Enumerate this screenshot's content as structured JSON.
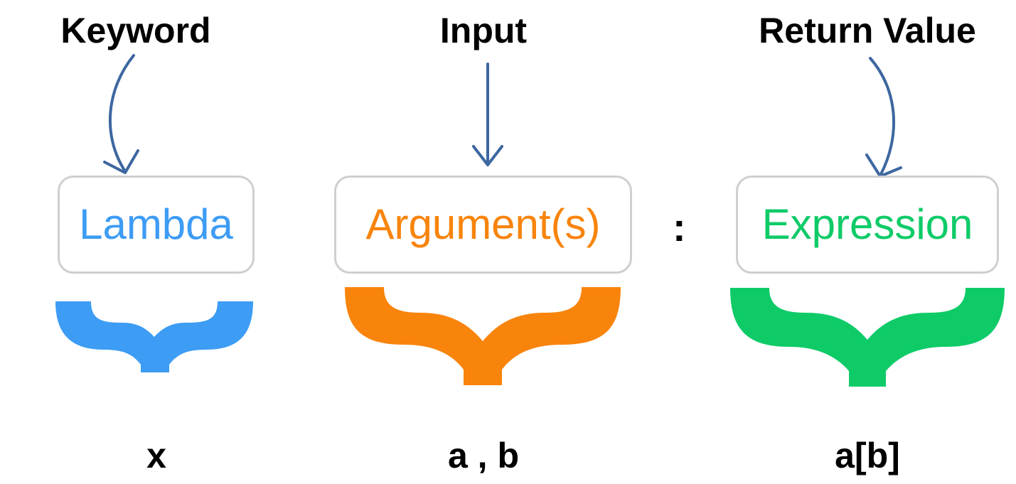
{
  "headers": {
    "keyword": "Keyword",
    "input": "Input",
    "return_value": "Return Value"
  },
  "boxes": {
    "lambda": "Lambda",
    "arguments": "Argument(s)",
    "expression": "Expression"
  },
  "separator": ":",
  "examples": {
    "keyword": "x",
    "input": "a , b",
    "return_value": "a[b]"
  },
  "colors": {
    "lambda": "#3d9cf4",
    "arguments": "#f8840c",
    "expression": "#0ecb68",
    "arrow": "#3d67a0",
    "box_border": "#cfcfcf"
  }
}
